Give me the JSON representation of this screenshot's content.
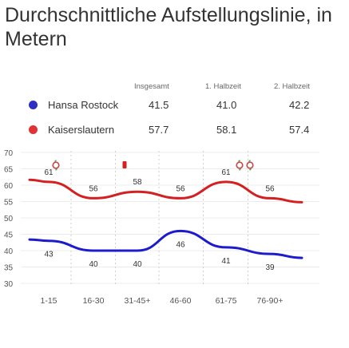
{
  "title": "Durchschnittliche Aufstellungslinie, in Metern",
  "summary_columns": [
    "Insgesamt",
    "1. Halbzeit",
    "2. Halbzeit"
  ],
  "teams": [
    {
      "name": "Hansa Rostock",
      "color": "#2f2fc4",
      "values": [
        "41.5",
        "41.0",
        "42.2"
      ]
    },
    {
      "name": "Kaiserslautern",
      "color": "#e03333",
      "values": [
        "57.7",
        "58.1",
        "57.4"
      ]
    }
  ],
  "chart_data": {
    "type": "line",
    "categories": [
      "1-15",
      "16-30",
      "31-45+",
      "46-60",
      "61-75",
      "76-90+"
    ],
    "ylim": [
      30,
      70
    ],
    "yticks": [
      "30",
      "35",
      "40",
      "45",
      "50",
      "55",
      "60",
      "65",
      "70"
    ],
    "grid": true,
    "series": [
      {
        "name": "Kaiserslautern",
        "color": "#d42020",
        "values": [
          61,
          56,
          58,
          56,
          61,
          56
        ],
        "labels": [
          "61",
          "56",
          "58",
          "56",
          "61",
          "56"
        ]
      },
      {
        "name": "Hansa Rostock",
        "color": "#1c1ccc",
        "values": [
          43,
          40,
          40,
          46,
          41,
          39
        ],
        "labels": [
          "43",
          "40",
          "40",
          "46",
          "41",
          "39"
        ]
      }
    ],
    "event_icons": [
      {
        "name": "substitution-icon"
      },
      {
        "name": "red-card-icon"
      },
      {
        "name": "substitution-icon"
      },
      {
        "name": "substitution-icon"
      }
    ]
  }
}
